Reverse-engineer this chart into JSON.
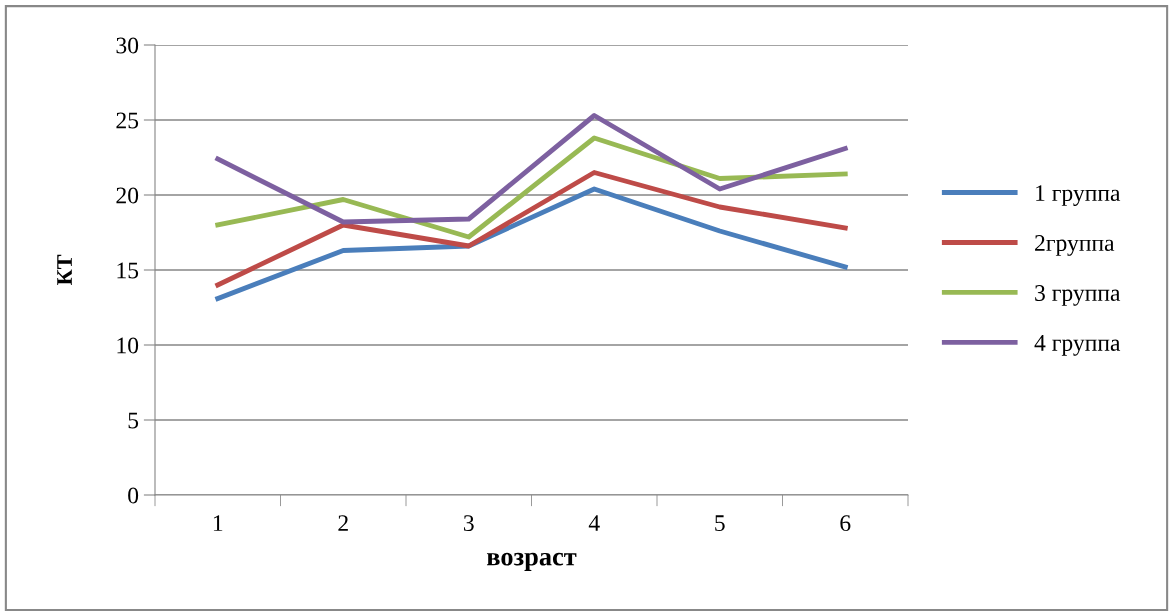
{
  "chart_data": {
    "type": "line",
    "xlabel": "возраст",
    "ylabel": "КТ",
    "categories": [
      "1",
      "2",
      "3",
      "4",
      "5",
      "6"
    ],
    "series": [
      {
        "name": "1 группа",
        "color": "#4a7ebb",
        "values": [
          13.1,
          16.3,
          16.6,
          20.4,
          17.6,
          15.2
        ]
      },
      {
        "name": "2группа",
        "color": "#be4b48",
        "values": [
          14.0,
          18.0,
          16.6,
          21.5,
          19.2,
          17.8
        ]
      },
      {
        "name": "3 группа",
        "color": "#98b954",
        "values": [
          18.0,
          19.7,
          17.2,
          23.8,
          21.1,
          21.4
        ]
      },
      {
        "name": "4 группа",
        "color": "#7d60a0",
        "values": [
          22.4,
          18.2,
          18.4,
          25.3,
          20.4,
          23.1
        ]
      }
    ],
    "ylim": [
      0,
      30
    ],
    "yticks": [
      0,
      5,
      10,
      15,
      20,
      25,
      30
    ],
    "grid": "y",
    "legend": "right",
    "marker": "none",
    "line_style": "solid"
  }
}
